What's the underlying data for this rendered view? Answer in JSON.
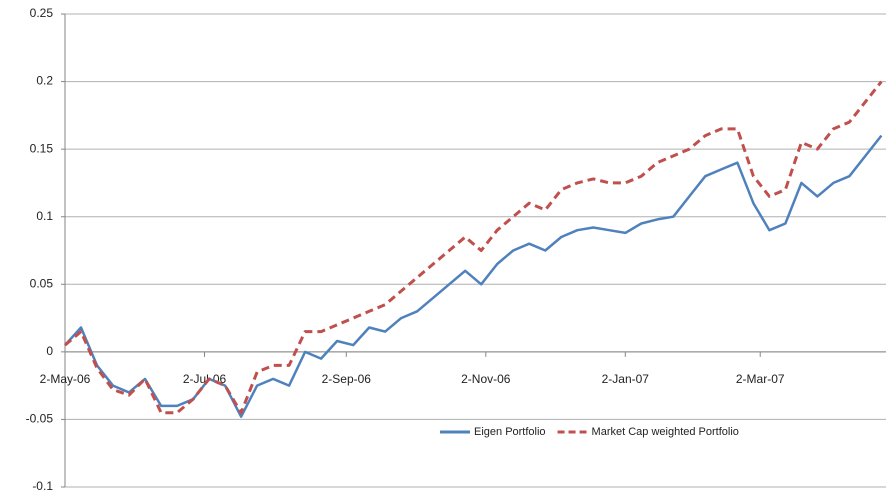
{
  "chart_data": {
    "type": "line",
    "x": [
      "2006-05-02",
      "2006-05-09",
      "2006-05-16",
      "2006-05-23",
      "2006-05-30",
      "2006-06-06",
      "2006-06-13",
      "2006-06-20",
      "2006-06-27",
      "2006-07-04",
      "2006-07-11",
      "2006-07-18",
      "2006-07-25",
      "2006-08-01",
      "2006-08-08",
      "2006-08-15",
      "2006-08-22",
      "2006-08-29",
      "2006-09-05",
      "2006-09-12",
      "2006-09-19",
      "2006-09-26",
      "2006-10-03",
      "2006-10-10",
      "2006-10-17",
      "2006-10-24",
      "2006-10-31",
      "2006-11-07",
      "2006-11-14",
      "2006-11-21",
      "2006-11-28",
      "2006-12-05",
      "2006-12-12",
      "2006-12-19",
      "2006-12-26",
      "2007-01-02",
      "2007-01-09",
      "2007-01-16",
      "2007-01-23",
      "2007-01-30",
      "2007-02-06",
      "2007-02-13",
      "2007-02-20",
      "2007-02-27",
      "2007-03-06",
      "2007-03-13",
      "2007-03-20",
      "2007-03-27",
      "2007-04-03",
      "2007-04-10",
      "2007-04-17",
      "2007-04-24"
    ],
    "series": [
      {
        "name": "Eigen Portfolio",
        "color": "#4f81bd",
        "dash": false,
        "values": [
          0.005,
          0.018,
          -0.01,
          -0.025,
          -0.03,
          -0.02,
          -0.04,
          -0.04,
          -0.035,
          -0.02,
          -0.025,
          -0.048,
          -0.025,
          -0.02,
          -0.025,
          0.0,
          -0.005,
          0.008,
          0.005,
          0.018,
          0.015,
          0.025,
          0.03,
          0.04,
          0.05,
          0.06,
          0.05,
          0.065,
          0.075,
          0.08,
          0.075,
          0.085,
          0.09,
          0.092,
          0.09,
          0.088,
          0.095,
          0.098,
          0.1,
          0.115,
          0.13,
          0.135,
          0.14,
          0.11,
          0.09,
          0.095,
          0.125,
          0.115,
          0.125,
          0.13,
          0.145,
          0.16
        ]
      },
      {
        "name": "Market Cap weighted Portfolio",
        "color": "#c0504d",
        "dash": true,
        "values": [
          0.005,
          0.015,
          -0.012,
          -0.028,
          -0.032,
          -0.02,
          -0.045,
          -0.045,
          -0.035,
          -0.02,
          -0.025,
          -0.045,
          -0.015,
          -0.01,
          -0.01,
          0.015,
          0.015,
          0.02,
          0.025,
          0.03,
          0.035,
          0.045,
          0.055,
          0.065,
          0.075,
          0.085,
          0.075,
          0.09,
          0.1,
          0.11,
          0.105,
          0.12,
          0.125,
          0.128,
          0.125,
          0.125,
          0.13,
          0.14,
          0.145,
          0.15,
          0.16,
          0.165,
          0.165,
          0.13,
          0.115,
          0.12,
          0.155,
          0.15,
          0.165,
          0.17,
          0.185,
          0.2
        ]
      }
    ],
    "xlim": [
      "2006-05-02",
      "2007-04-26"
    ],
    "xticks": [
      {
        "value": "2006-05-02",
        "label": "2-May-06"
      },
      {
        "value": "2006-07-02",
        "label": "2-Jul-06"
      },
      {
        "value": "2006-09-02",
        "label": "2-Sep-06"
      },
      {
        "value": "2006-11-02",
        "label": "2-Nov-06"
      },
      {
        "value": "2007-01-02",
        "label": "2-Jan-07"
      },
      {
        "value": "2007-03-02",
        "label": "2-Mar-07"
      }
    ],
    "ylim": [
      -0.1,
      0.25
    ],
    "yticks": [
      -0.1,
      -0.05,
      0,
      0.05,
      0.1,
      0.15,
      0.2,
      0.25
    ],
    "grid": true,
    "legend": "lower right"
  }
}
